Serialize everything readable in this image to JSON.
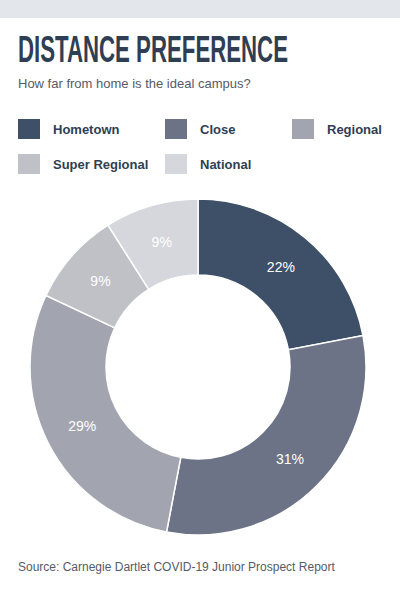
{
  "chart_data": {
    "type": "pie",
    "title": "DISTANCE PREFERENCE",
    "subtitle": "How far from home is the ideal campus?",
    "categories": [
      "Hometown",
      "Close",
      "Regional",
      "Super Regional",
      "National"
    ],
    "values": [
      22,
      31,
      29,
      9,
      9
    ],
    "value_labels": [
      "22%",
      "31%",
      "29%",
      "9%",
      "9%"
    ],
    "colors": [
      "#3e5068",
      "#6d7386",
      "#a2a5b0",
      "#bfc1c7",
      "#d6d7dc"
    ],
    "legend": "top",
    "data_labels": true,
    "source": "Source: Carnegie Dartlet COVID-19 Junior Prospect Report"
  }
}
